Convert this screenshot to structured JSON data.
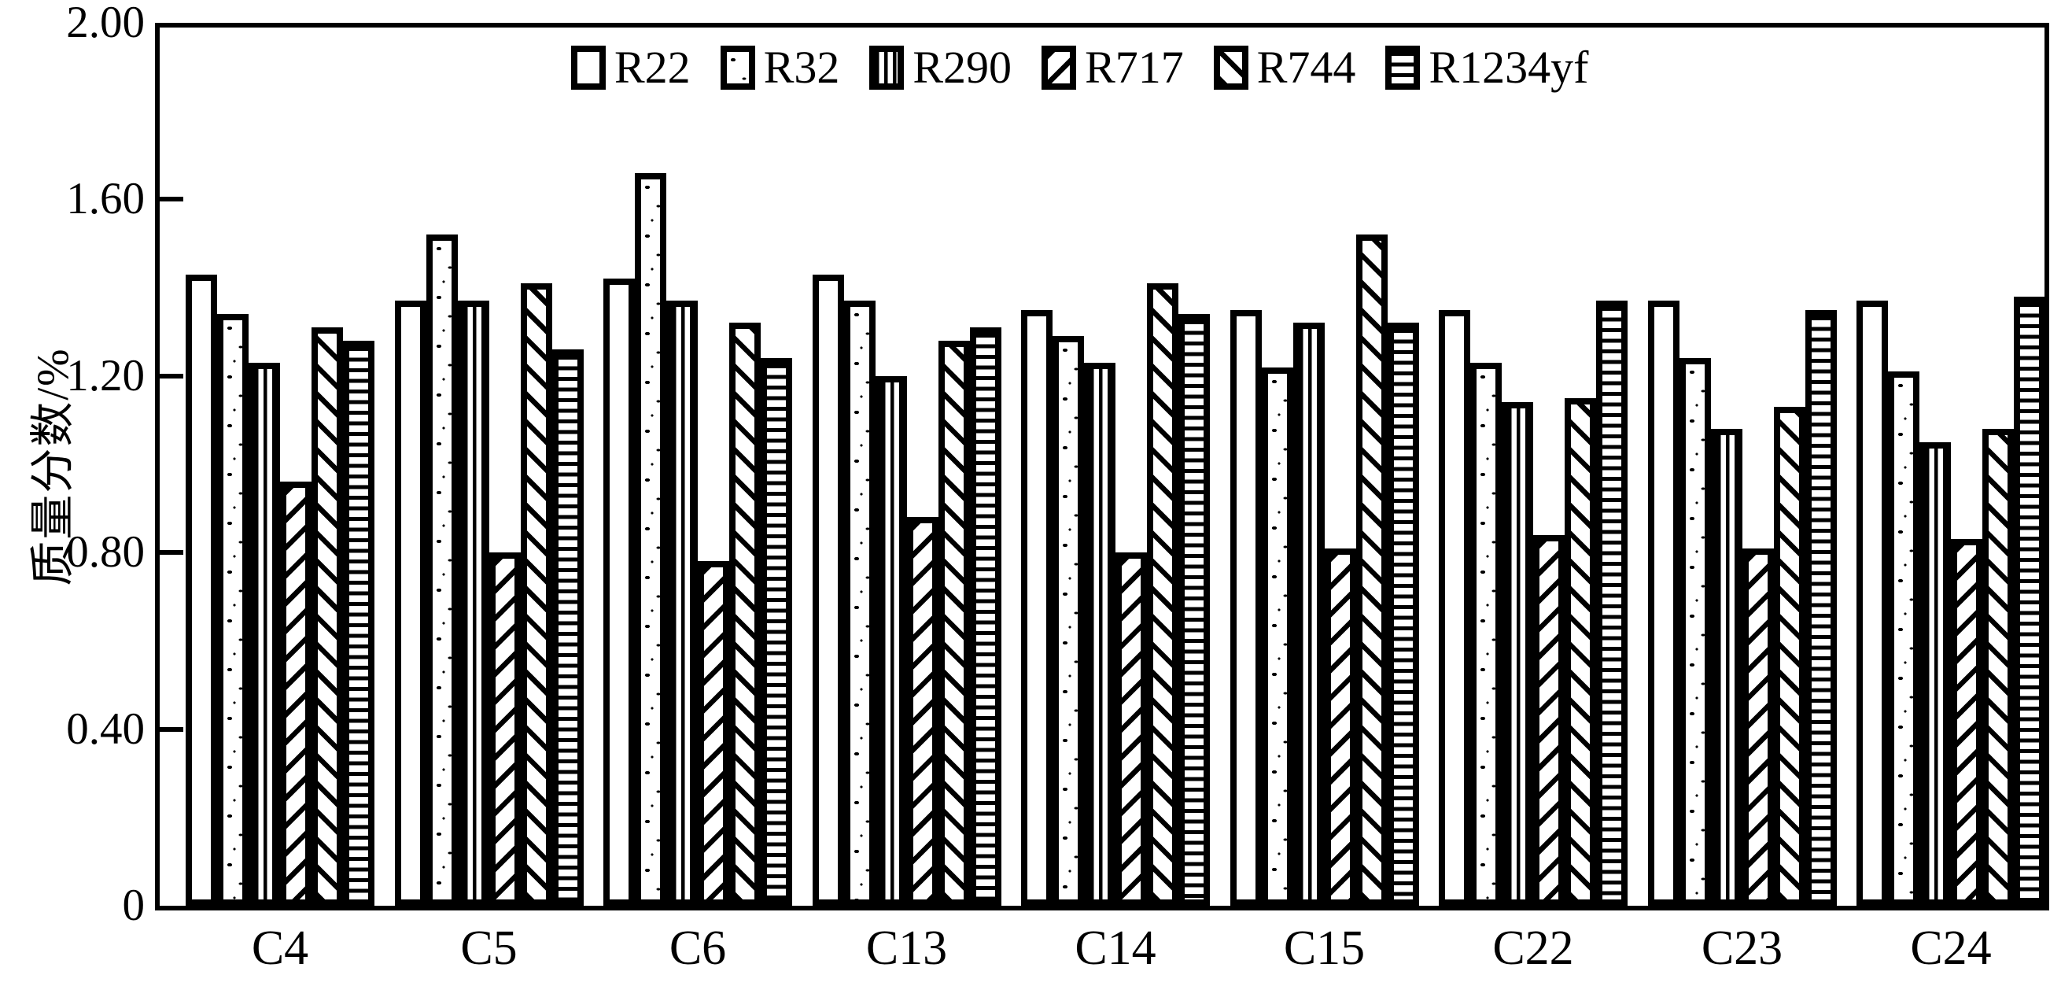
{
  "figure": {
    "background_color": "#ffffff",
    "ink_color": "#000000",
    "y_axis_title": "质量分数/%"
  },
  "chart_data": {
    "type": "bar",
    "title": "",
    "xlabel": "",
    "ylabel": "质量分数/%",
    "ylim": [
      0,
      2.0
    ],
    "yticks": [
      0,
      0.4,
      0.8,
      1.2,
      1.6,
      2.0
    ],
    "ytick_labels": [
      "0",
      "0.40",
      "0.80",
      "1.20",
      "1.60",
      "2.00"
    ],
    "grid": false,
    "legend_position": "top-center-inside",
    "bar_fill_color": "#ffffff",
    "bar_edge_color": "#000000",
    "categories": [
      "C4",
      "C5",
      "C6",
      "C13",
      "C14",
      "C15",
      "C22",
      "C23",
      "C24"
    ],
    "series": [
      {
        "name": "R22",
        "hatch": "none",
        "values": [
          1.43,
          1.37,
          1.42,
          1.43,
          1.35,
          1.35,
          1.35,
          1.37,
          1.37
        ]
      },
      {
        "name": "R32",
        "hatch": "dots",
        "values": [
          1.34,
          1.52,
          1.66,
          1.37,
          1.29,
          1.22,
          1.23,
          1.24,
          1.21
        ]
      },
      {
        "name": "R290",
        "hatch": "vertical",
        "values": [
          1.23,
          1.37,
          1.37,
          1.2,
          1.23,
          1.32,
          1.14,
          1.08,
          1.05
        ]
      },
      {
        "name": "R717",
        "hatch": "diagonal-back",
        "values": [
          0.96,
          0.8,
          0.78,
          0.88,
          0.8,
          0.81,
          0.84,
          0.81,
          0.83
        ]
      },
      {
        "name": "R744",
        "hatch": "diagonal-forward",
        "values": [
          1.31,
          1.41,
          1.32,
          1.28,
          1.41,
          1.52,
          1.15,
          1.13,
          1.08
        ]
      },
      {
        "name": "R1234yf",
        "hatch": "horizontal",
        "values": [
          1.28,
          1.26,
          1.24,
          1.31,
          1.34,
          1.32,
          1.37,
          1.35,
          1.38
        ]
      }
    ]
  }
}
